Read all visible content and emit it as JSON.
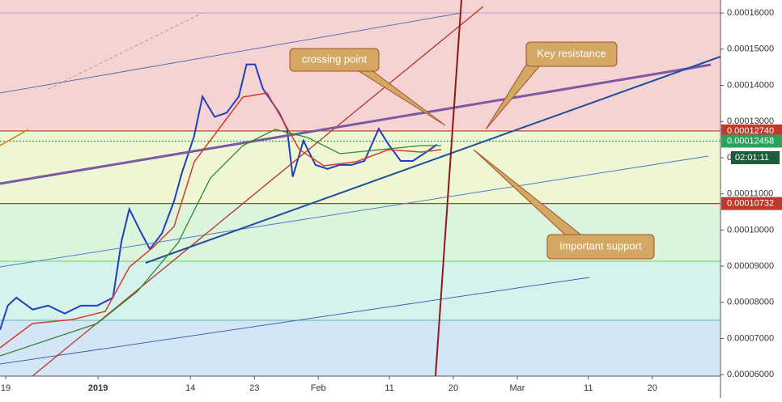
{
  "chart_data": {
    "type": "line",
    "x": [
      -0.8,
      0.3,
      1.5,
      3.8,
      6,
      8.3,
      10.6,
      12.9,
      15.1,
      16.3,
      17.4,
      19.1,
      20.3,
      22,
      23.7,
      24.8,
      26.5,
      27.7,
      29.4,
      31.1,
      32.8,
      33.9,
      35.1,
      36.2,
      38.5,
      39.6,
      40.4,
      41.9,
      43.6,
      45.3,
      47,
      48.7,
      50.5,
      52.5,
      53.9,
      55.6,
      57.3,
      59,
      60.7
    ],
    "series": [
      {
        "color": "#1f3fbf",
        "values": [
          7.24e-05,
          7.91e-05,
          8.13e-05,
          7.8e-05,
          7.91e-05,
          7.69e-05,
          7.91e-05,
          7.91e-05,
          8.13e-05,
          9.69e-05,
          0.0001058,
          9.91e-05,
          9.47e-05,
          9.91e-05,
          0.000108,
          0.0001158,
          0.0001258,
          0.0001369,
          0.0001313,
          0.0001324,
          0.0001369,
          0.0001458,
          0.0001458,
          0.0001391,
          0.0001324,
          0.000128,
          0.0001147,
          0.0001247,
          0.000118,
          0.0001169,
          0.000118,
          0.000118,
          0.0001191,
          0.000128,
          0.0001236,
          0.0001191,
          0.0001191,
          0.0001213,
          0.0001236
        ]
      }
    ],
    "xlim": [
      -0.8,
      100.6
    ],
    "xticks": [
      {
        "value": 0,
        "label": "19"
      },
      {
        "value": 13,
        "label": "2019"
      },
      {
        "value": 26,
        "label": "14"
      },
      {
        "value": 35,
        "label": "23"
      },
      {
        "value": 44,
        "label": "Feb"
      },
      {
        "value": 54,
        "label": "11"
      },
      {
        "value": 63,
        "label": "20"
      },
      {
        "value": 72,
        "label": "Mar"
      },
      {
        "value": 82,
        "label": "11"
      },
      {
        "value": 91,
        "label": "20"
      }
    ],
    "ylim": [
      5.96e-05,
      0.0001636
    ],
    "yticks": [
      {
        "value": 0.00016,
        "label": "0.00016000"
      },
      {
        "value": 0.00015,
        "label": "0.00015000"
      },
      {
        "value": 0.00014,
        "label": "0.00014000"
      },
      {
        "value": 0.00013,
        "label": "0.00013000"
      },
      {
        "value": 0.00012,
        "label": "0.00012000"
      },
      {
        "value": 0.00011,
        "label": "0.00011000"
      },
      {
        "value": 0.0001,
        "label": "0.00010000"
      },
      {
        "value": 9e-05,
        "label": "0.00009000"
      },
      {
        "value": 8e-05,
        "label": "0.00008000"
      },
      {
        "value": 7e-05,
        "label": "0.00007000"
      },
      {
        "value": 6e-05,
        "label": "0.00006000"
      }
    ],
    "price_labels": [
      {
        "value": 0.0001274,
        "label": "0.00012740",
        "color": "#c0392b"
      },
      {
        "value": 0.00012458,
        "label": "0.00012458",
        "color": "#27a35a"
      },
      {
        "value": 0.00010732,
        "label": "0.00010732",
        "color": "#c0392b"
      }
    ],
    "countdown": "02:01:11",
    "annotations": [
      "crossing point",
      "Key resistance",
      "important support"
    ]
  }
}
